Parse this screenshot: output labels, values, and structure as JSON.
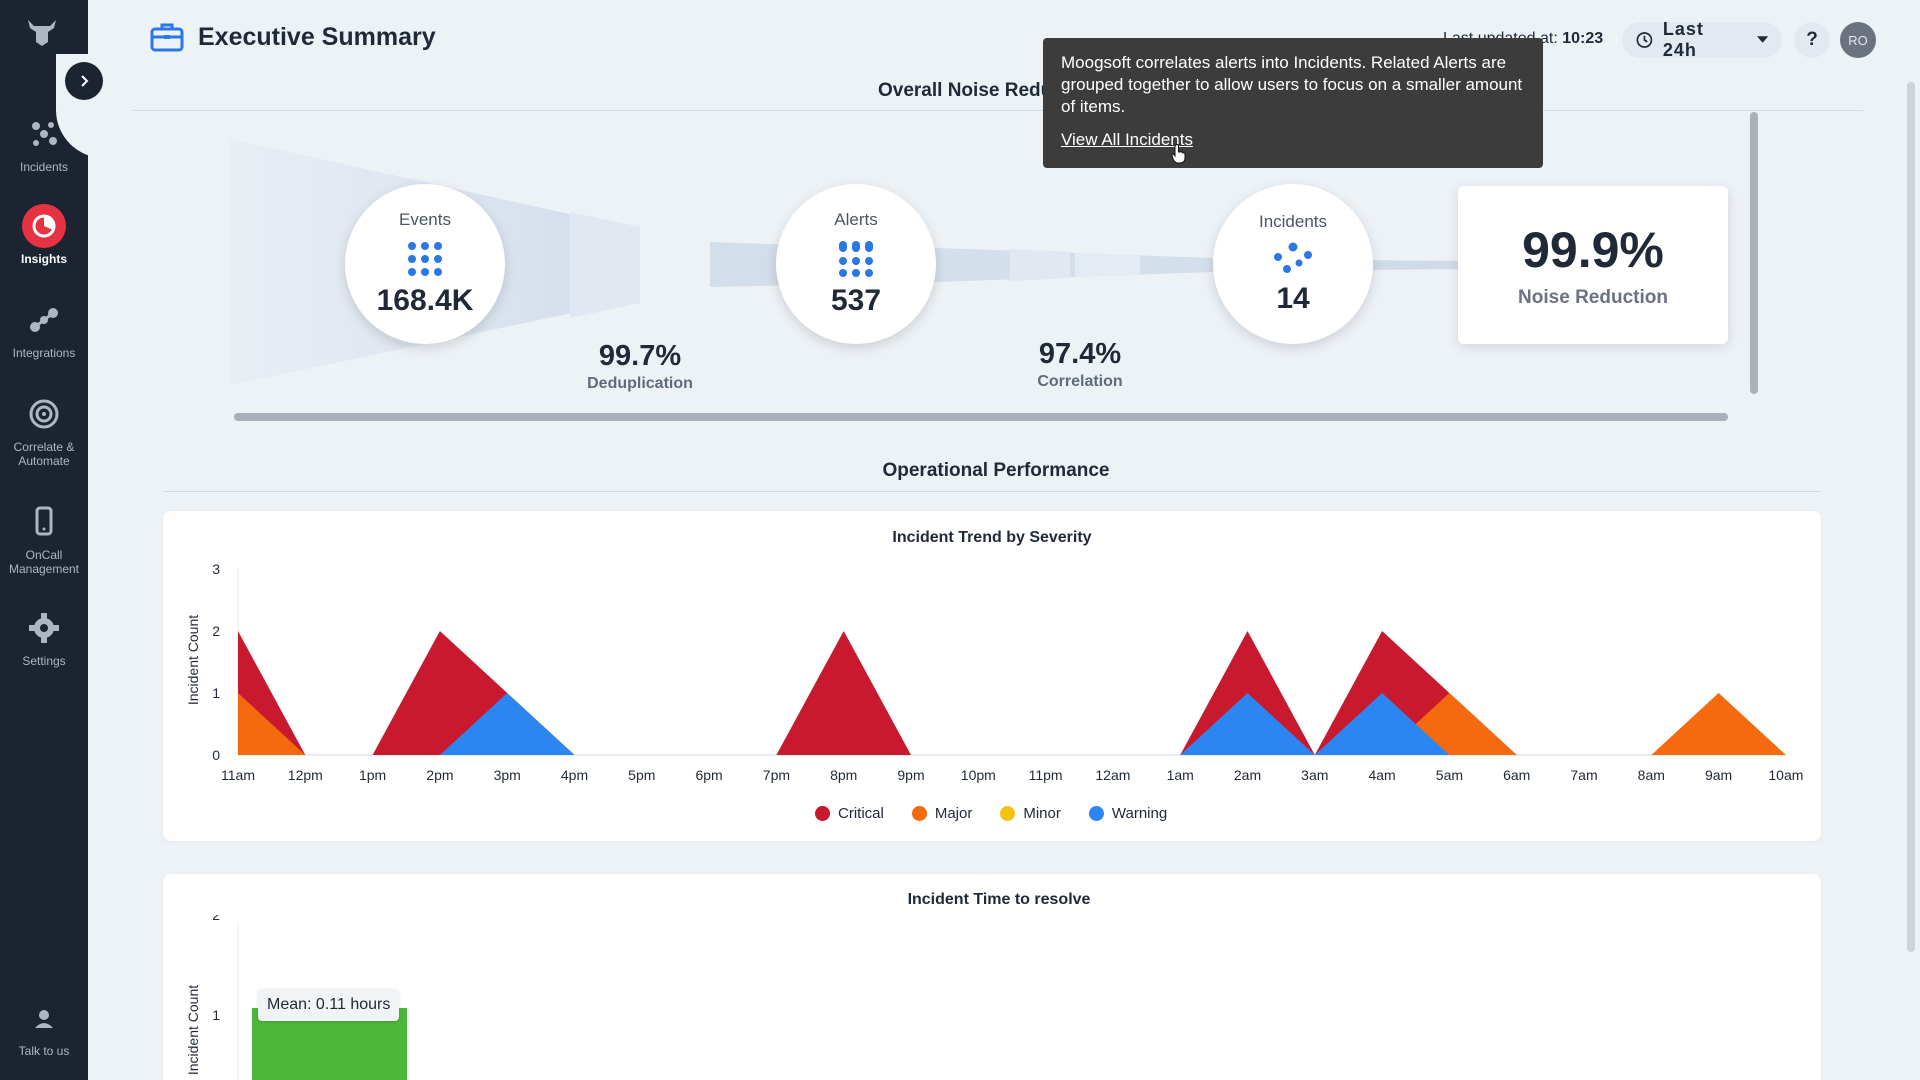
{
  "sidebar": {
    "items": [
      {
        "label": "Incidents",
        "icon": "incidents-icon",
        "active": false
      },
      {
        "label": "Insights",
        "icon": "insights-icon",
        "active": true
      },
      {
        "label": "Integrations",
        "icon": "integrations-icon",
        "active": false
      },
      {
        "label": "Correlate & Automate",
        "icon": "correlate-icon",
        "active": false
      },
      {
        "label": "OnCall Management",
        "icon": "oncall-icon",
        "active": false
      },
      {
        "label": "Settings",
        "icon": "gear-icon",
        "active": false
      }
    ],
    "talk_label": "Talk to us"
  },
  "header": {
    "title": "Executive Summary",
    "last_updated_label": "Last updated at:",
    "last_updated_time": "10:23",
    "time_range": "Last 24h",
    "help": "?",
    "avatar": "RO"
  },
  "noise": {
    "title": "Overall Noise Reduction",
    "events_label": "Events",
    "events_value": "168.4K",
    "alerts_label": "Alerts",
    "alerts_value": "537",
    "incidents_label": "Incidents",
    "incidents_value": "14",
    "dedup_value": "99.7%",
    "dedup_label": "Deduplication",
    "corr_value": "97.4%",
    "corr_label": "Correlation",
    "reduction_value": "99.9%",
    "reduction_label": "Noise Reduction"
  },
  "tooltip": {
    "text": "Moogsoft correlates alerts into Incidents. Related Alerts are grouped together to allow users to focus on a smaller amount of items.",
    "link": "View All Incidents"
  },
  "operational": {
    "title": "Operational Performance"
  },
  "colors": {
    "critical": "#c8192e",
    "major": "#f56a0e",
    "minor": "#f5c211",
    "warning": "#2c86f1",
    "resolve_bar": "#4cb83a"
  },
  "chart_data": [
    {
      "type": "area",
      "title": "Incident Trend by Severity",
      "ylabel": "Incident Count",
      "xlabel": "",
      "categories": [
        "11am",
        "12pm",
        "1pm",
        "2pm",
        "3pm",
        "4pm",
        "5pm",
        "6pm",
        "7pm",
        "8pm",
        "9pm",
        "10pm",
        "11pm",
        "12am",
        "1am",
        "2am",
        "3am",
        "4am",
        "5am",
        "6am",
        "7am",
        "8am",
        "9am",
        "10am"
      ],
      "y_ticks": [
        "0",
        "1",
        "2",
        "3"
      ],
      "ylim": [
        0,
        3
      ],
      "series": [
        {
          "name": "Critical",
          "values": [
            2,
            0,
            0,
            2,
            1,
            0,
            0,
            0,
            0,
            2,
            0,
            0,
            0,
            0,
            0,
            2,
            0,
            2,
            1,
            0,
            0,
            0,
            0,
            0
          ]
        },
        {
          "name": "Major",
          "values": [
            1,
            0,
            0,
            0,
            0,
            0,
            0,
            0,
            0,
            0,
            0,
            0,
            0,
            0,
            0,
            0,
            0,
            0,
            1,
            0,
            0,
            0,
            1,
            0
          ]
        },
        {
          "name": "Minor",
          "values": [
            0,
            0,
            0,
            0,
            0,
            0,
            0,
            0,
            0,
            0,
            0,
            0,
            0,
            0,
            0,
            0,
            0,
            0,
            0,
            0,
            0,
            0,
            0,
            0
          ]
        },
        {
          "name": "Warning",
          "values": [
            0,
            0,
            0,
            0,
            1,
            0,
            0,
            0,
            0,
            0,
            0,
            0,
            0,
            0,
            0,
            1,
            0,
            1,
            0,
            0,
            0,
            0,
            0,
            0
          ]
        }
      ],
      "legend": "bottom"
    },
    {
      "type": "bar",
      "title": "Incident Time to resolve",
      "ylabel": "Incident Count",
      "y_ticks": [
        "1",
        "2"
      ],
      "annotation": "Mean: 0.11 hours",
      "values": [
        1
      ]
    }
  ]
}
